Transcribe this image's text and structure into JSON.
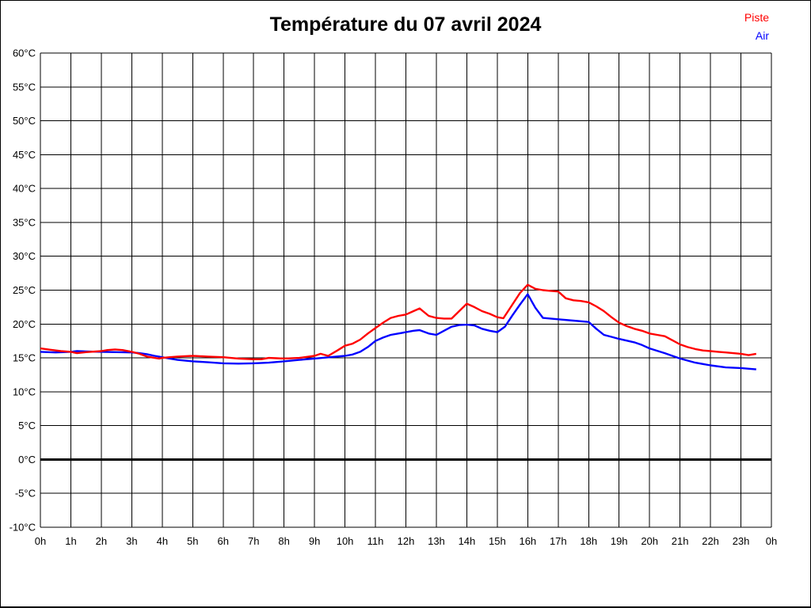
{
  "title": "Température du 07 avril 2024",
  "chart_data": {
    "type": "line",
    "title": "Température du 07 avril 2024",
    "xlabel": "",
    "ylabel": "",
    "xlim": [
      0,
      24
    ],
    "ylim": [
      -10,
      60
    ],
    "y_step": 5,
    "grid": true,
    "zero_line_bold": true,
    "legend_position": "top-right",
    "x_tick_labels": [
      "0h",
      "1h",
      "2h",
      "3h",
      "4h",
      "5h",
      "6h",
      "7h",
      "8h",
      "9h",
      "10h",
      "11h",
      "12h",
      "13h",
      "14h",
      "15h",
      "16h",
      "17h",
      "18h",
      "19h",
      "20h",
      "21h",
      "22h",
      "23h",
      "0h"
    ],
    "y_tick_labels": [
      "60°C",
      "55°C",
      "50°C",
      "45°C",
      "40°C",
      "35°C",
      "30°C",
      "25°C",
      "20°C",
      "15°C",
      "10°C",
      "5°C",
      "0°C",
      "-5°C",
      "-10°C"
    ],
    "series": [
      {
        "name": "Piste",
        "color": "#ff0000",
        "points": [
          [
            0,
            16.4
          ],
          [
            0.33,
            16.2
          ],
          [
            0.67,
            16.0
          ],
          [
            1,
            15.9
          ],
          [
            1.2,
            15.7
          ],
          [
            1.5,
            15.85
          ],
          [
            2,
            16.0
          ],
          [
            2.2,
            16.15
          ],
          [
            2.45,
            16.25
          ],
          [
            2.7,
            16.15
          ],
          [
            3,
            15.9
          ],
          [
            3.25,
            15.6
          ],
          [
            3.5,
            15.2
          ],
          [
            3.75,
            15.0
          ],
          [
            3.9,
            14.9
          ],
          [
            4,
            15.0
          ],
          [
            4.25,
            15.1
          ],
          [
            4.5,
            15.2
          ],
          [
            4.75,
            15.25
          ],
          [
            5,
            15.3
          ],
          [
            5.5,
            15.2
          ],
          [
            6,
            15.1
          ],
          [
            6.5,
            14.9
          ],
          [
            7,
            14.8
          ],
          [
            7.25,
            14.8
          ],
          [
            7.5,
            15.0
          ],
          [
            7.75,
            14.95
          ],
          [
            8,
            14.9
          ],
          [
            8.5,
            15.0
          ],
          [
            9,
            15.3
          ],
          [
            9.2,
            15.6
          ],
          [
            9.45,
            15.3
          ],
          [
            9.75,
            16.1
          ],
          [
            10,
            16.8
          ],
          [
            10.25,
            17.1
          ],
          [
            10.5,
            17.7
          ],
          [
            10.75,
            18.6
          ],
          [
            11,
            19.4
          ],
          [
            11.25,
            20.2
          ],
          [
            11.5,
            20.9
          ],
          [
            11.75,
            21.2
          ],
          [
            12,
            21.4
          ],
          [
            12.25,
            21.9
          ],
          [
            12.45,
            22.3
          ],
          [
            12.75,
            21.2
          ],
          [
            13,
            20.9
          ],
          [
            13.25,
            20.8
          ],
          [
            13.5,
            20.8
          ],
          [
            13.75,
            21.9
          ],
          [
            14,
            23.0
          ],
          [
            14.25,
            22.5
          ],
          [
            14.5,
            21.9
          ],
          [
            14.75,
            21.5
          ],
          [
            15,
            21.0
          ],
          [
            15.2,
            20.85
          ],
          [
            15.5,
            22.9
          ],
          [
            15.75,
            24.6
          ],
          [
            16,
            25.8
          ],
          [
            16.25,
            25.2
          ],
          [
            16.5,
            25.0
          ],
          [
            16.75,
            24.9
          ],
          [
            17,
            24.8
          ],
          [
            17.25,
            23.8
          ],
          [
            17.5,
            23.5
          ],
          [
            17.75,
            23.4
          ],
          [
            18,
            23.2
          ],
          [
            18.25,
            22.6
          ],
          [
            18.5,
            21.9
          ],
          [
            18.75,
            21.0
          ],
          [
            19,
            20.2
          ],
          [
            19.25,
            19.7
          ],
          [
            19.5,
            19.3
          ],
          [
            19.75,
            19.0
          ],
          [
            20,
            18.6
          ],
          [
            20.25,
            18.4
          ],
          [
            20.5,
            18.2
          ],
          [
            20.75,
            17.6
          ],
          [
            21,
            17.0
          ],
          [
            21.25,
            16.6
          ],
          [
            21.5,
            16.3
          ],
          [
            21.75,
            16.1
          ],
          [
            22,
            16.0
          ],
          [
            22.25,
            15.9
          ],
          [
            22.5,
            15.8
          ],
          [
            22.75,
            15.7
          ],
          [
            23,
            15.6
          ],
          [
            23.25,
            15.4
          ],
          [
            23.5,
            15.6
          ]
        ]
      },
      {
        "name": "Air",
        "color": "#0000ff",
        "points": [
          [
            0,
            15.9
          ],
          [
            0.5,
            15.8
          ],
          [
            0.75,
            15.85
          ],
          [
            1,
            15.9
          ],
          [
            1.2,
            16.0
          ],
          [
            1.5,
            15.95
          ],
          [
            2,
            15.9
          ],
          [
            2.5,
            15.85
          ],
          [
            3,
            15.8
          ],
          [
            3.25,
            15.7
          ],
          [
            3.5,
            15.55
          ],
          [
            3.75,
            15.3
          ],
          [
            4,
            15.1
          ],
          [
            4.25,
            14.9
          ],
          [
            4.5,
            14.7
          ],
          [
            5,
            14.5
          ],
          [
            5.5,
            14.35
          ],
          [
            6,
            14.2
          ],
          [
            6.5,
            14.15
          ],
          [
            7,
            14.2
          ],
          [
            7.5,
            14.3
          ],
          [
            8,
            14.5
          ],
          [
            8.5,
            14.7
          ],
          [
            9,
            14.9
          ],
          [
            9.5,
            15.1
          ],
          [
            10,
            15.3
          ],
          [
            10.25,
            15.5
          ],
          [
            10.5,
            15.9
          ],
          [
            10.75,
            16.6
          ],
          [
            11,
            17.5
          ],
          [
            11.25,
            18.0
          ],
          [
            11.5,
            18.4
          ],
          [
            11.75,
            18.6
          ],
          [
            12,
            18.8
          ],
          [
            12.25,
            19.0
          ],
          [
            12.45,
            19.1
          ],
          [
            12.75,
            18.6
          ],
          [
            13,
            18.4
          ],
          [
            13.25,
            19.0
          ],
          [
            13.5,
            19.6
          ],
          [
            13.75,
            19.85
          ],
          [
            14,
            19.9
          ],
          [
            14.25,
            19.8
          ],
          [
            14.5,
            19.3
          ],
          [
            14.75,
            19.0
          ],
          [
            15,
            18.8
          ],
          [
            15.25,
            19.6
          ],
          [
            15.5,
            21.3
          ],
          [
            15.75,
            22.9
          ],
          [
            16,
            24.4
          ],
          [
            16.25,
            22.4
          ],
          [
            16.5,
            20.9
          ],
          [
            16.75,
            20.8
          ],
          [
            17,
            20.7
          ],
          [
            17.5,
            20.5
          ],
          [
            18,
            20.3
          ],
          [
            18.25,
            19.3
          ],
          [
            18.5,
            18.4
          ],
          [
            18.75,
            18.1
          ],
          [
            19,
            17.8
          ],
          [
            19.5,
            17.3
          ],
          [
            19.75,
            16.9
          ],
          [
            20,
            16.4
          ],
          [
            20.5,
            15.7
          ],
          [
            21,
            14.9
          ],
          [
            21.5,
            14.3
          ],
          [
            22,
            13.9
          ],
          [
            22.5,
            13.6
          ],
          [
            23,
            13.5
          ],
          [
            23.5,
            13.3
          ]
        ]
      }
    ]
  }
}
